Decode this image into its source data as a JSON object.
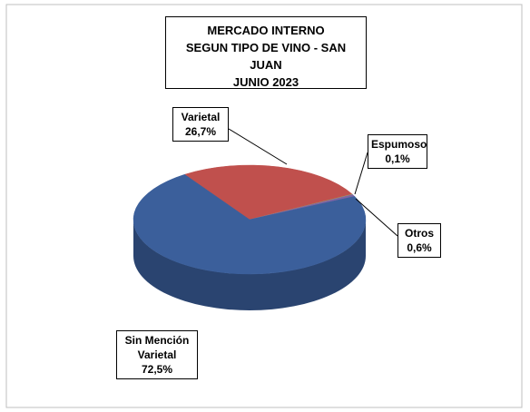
{
  "chart_data": {
    "type": "pie3d",
    "title": [
      "MERCADO INTERNO",
      "SEGUN TIPO DE VINO - SAN JUAN",
      "JUNIO 2023"
    ],
    "categories": [
      "Varietal",
      "Espumoso",
      "Otros",
      "Sin Mención Varietal"
    ],
    "values": [
      26.7,
      0.1,
      0.6,
      72.5
    ],
    "value_labels": [
      "26,7%",
      "0,1%",
      "0,6%",
      "72,5%"
    ],
    "colors": [
      "#c0504d",
      "#9bbb59",
      "#8064a2",
      "#3b5f9b"
    ]
  }
}
